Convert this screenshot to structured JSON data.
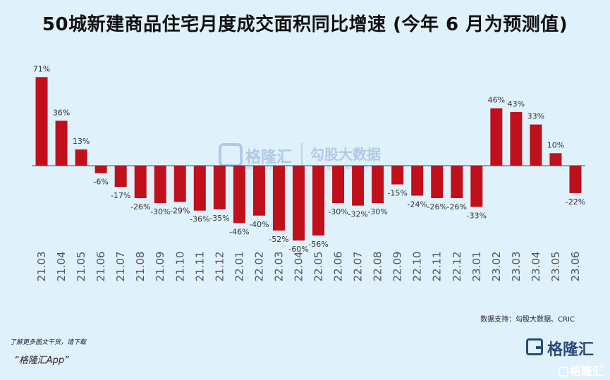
{
  "title": "50城新建商品住宅月度成交面积同比增速 (今年 6 月为预测值)",
  "source": "数据支持：勾股大数据、CRIC",
  "footer": {
    "note": "了解更多图文干货，请下载",
    "app": "“格隆汇App”"
  },
  "logo": {
    "brand": "格隆汇",
    "watermark_left": "格隆汇",
    "watermark_right": "勾股大数据",
    "watermark_url": "www.gogudata.com",
    "watermark_small": "www.gelonghui.com",
    "corner": "格隆汇"
  },
  "colors": {
    "bar": "#c0101c",
    "background": "#dff1fb",
    "label": "#333333",
    "tick": "#555555"
  },
  "chart_data": {
    "type": "bar",
    "categories": [
      "21.03",
      "21.04",
      "21.05",
      "21.06",
      "21.07",
      "21.08",
      "21.09",
      "21.10",
      "21.11",
      "21.12",
      "22.01",
      "22.02",
      "22.03",
      "22.04",
      "22.05",
      "22.06",
      "22.07",
      "22.08",
      "22.09",
      "22.10",
      "22.11",
      "22.12",
      "23.01",
      "23.02",
      "23.03",
      "23.04",
      "23.05",
      "23.06"
    ],
    "values": [
      71,
      36,
      13,
      -6,
      -17,
      -26,
      -30,
      -29,
      -36,
      -35,
      -46,
      -40,
      -52,
      -60,
      -56,
      -30,
      -32,
      -30,
      -15,
      -24,
      -26,
      -26,
      -33,
      46,
      43,
      33,
      10,
      -22
    ],
    "labels": [
      "71%",
      "36%",
      "13%",
      "-6%",
      "-17%",
      "-26%",
      "-30%",
      "-29%",
      "-36%",
      "-35%",
      "-46%",
      "-40%",
      "-52%",
      "-60%",
      "-56%",
      "-30%",
      "-32%",
      "-30%",
      "-15%",
      "-24%",
      "-26%",
      "-26%",
      "-33%",
      "46%",
      "43%",
      "33%",
      "10%",
      "-22%"
    ],
    "title": "50城新建商品住宅月度成交面积同比增速 (今年 6 月为预测值)",
    "grid": false,
    "legend": "none"
  }
}
